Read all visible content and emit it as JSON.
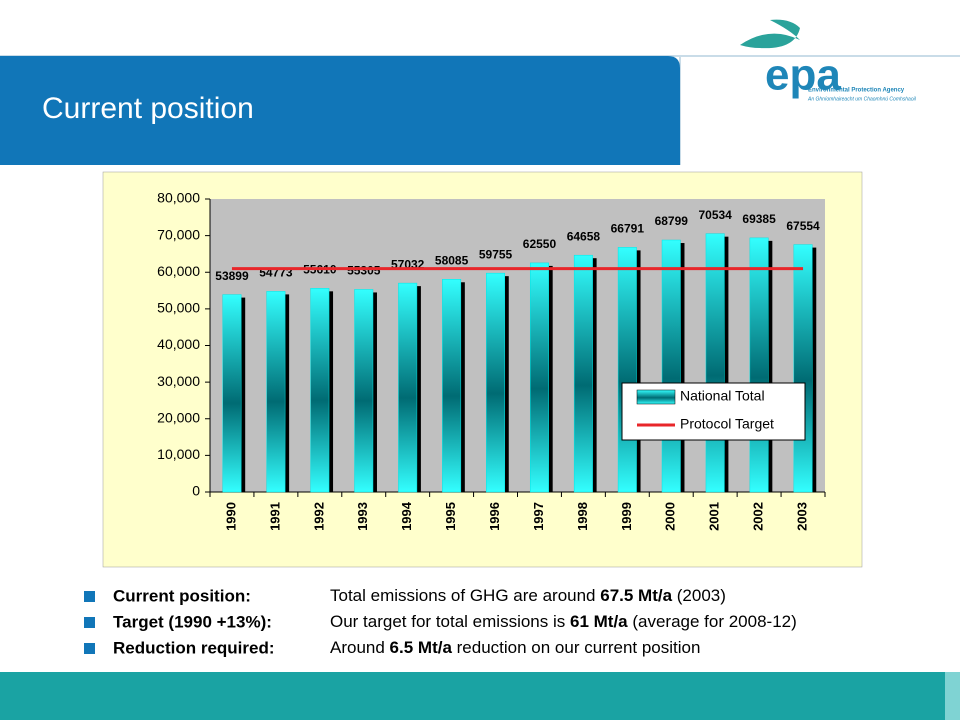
{
  "slide": {
    "title": "Current position",
    "logo": {
      "name": "epa",
      "line1": "Environmental Protection Agency",
      "line2": "An Ghníomhaireacht um Chaomhnú Comhshaoil"
    },
    "bullets": [
      {
        "label": "Current position:",
        "text": [
          "Total emissions of GHG are around ",
          "67.5 Mt/a",
          " (2003)"
        ]
      },
      {
        "label": "Target (1990 +13%):",
        "text": [
          "Our target for total emissions is ",
          "61 Mt/a",
          " (average for 2008-12)"
        ]
      },
      {
        "label": "Reduction required:",
        "text": [
          "Around ",
          "6.5 Mt/a",
          " reduction on our current position"
        ]
      }
    ]
  },
  "chart_data": {
    "type": "bar",
    "categories": [
      "1990",
      "1991",
      "1992",
      "1993",
      "1994",
      "1995",
      "1996",
      "1997",
      "1998",
      "1999",
      "2000",
      "2001",
      "2002",
      "2003"
    ],
    "series": [
      {
        "name": "National Total",
        "type": "bar",
        "color": "#00e5e5",
        "values": [
          53899,
          54773,
          55610,
          55305,
          57032,
          58085,
          59755,
          62550,
          64658,
          66791,
          68799,
          70534,
          69385,
          67554
        ]
      },
      {
        "name": "Protocol Target",
        "type": "line",
        "color": "#e8262a",
        "values": [
          61000,
          61000,
          61000,
          61000,
          61000,
          61000,
          61000,
          61000,
          61000,
          61000,
          61000,
          61000,
          61000,
          61000
        ]
      }
    ],
    "ylim": [
      0,
      80000
    ],
    "yticks": [
      0,
      {
        "value": 10000,
        "label": "10,000"
      },
      {
        "value": 20000,
        "label": "20,000"
      },
      {
        "value": 30000,
        "label": "30,000"
      },
      {
        "value": 40000,
        "label": "40,000"
      },
      {
        "value": 50000,
        "label": "50,000"
      },
      {
        "value": 60000,
        "label": "60,000"
      },
      {
        "value": 70000,
        "label": "70,000"
      },
      {
        "value": 80000,
        "label": "80,000"
      }
    ],
    "grid": false,
    "legend": "lower right"
  }
}
